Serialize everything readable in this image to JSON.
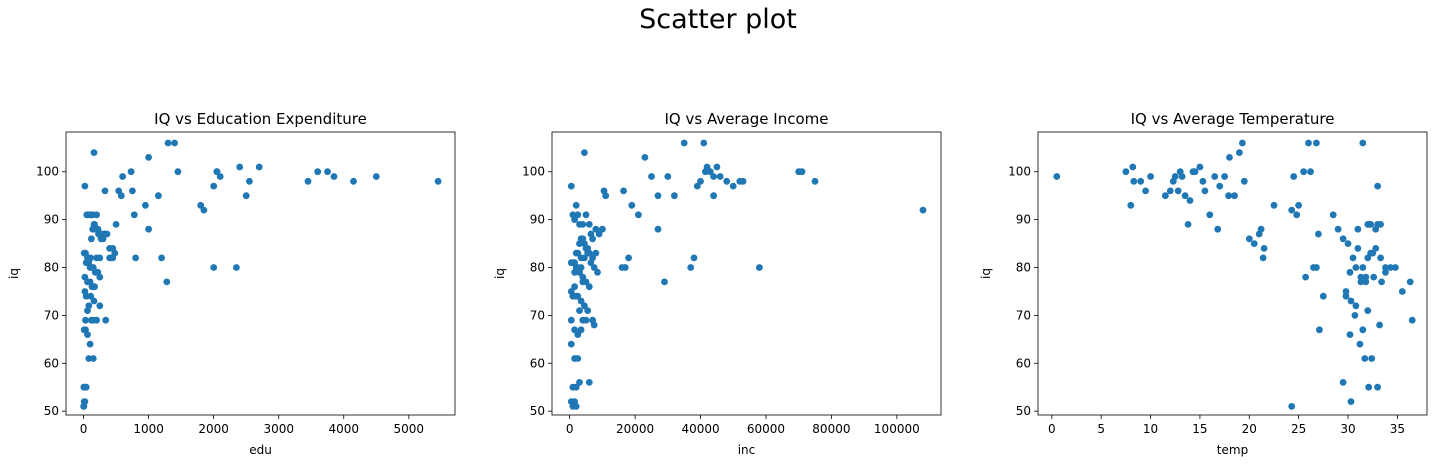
{
  "suptitle": "Scatter plot",
  "colors": {
    "marker": "#1f77b4"
  },
  "chart_data": [
    {
      "type": "scatter",
      "title": "IQ vs Education Expenditure",
      "xlabel": "edu",
      "ylabel": "iq",
      "xlim": [
        -270,
        5710
      ],
      "ylim": [
        49.2,
        108.3
      ],
      "xticks": [
        0,
        1000,
        2000,
        3000,
        4000,
        5000
      ],
      "yticks": [
        50,
        60,
        70,
        80,
        90,
        100
      ],
      "x": [
        1300,
        1400,
        2400,
        2700,
        1000,
        160,
        1450,
        3600,
        3750,
        4500,
        2100,
        3450,
        3850,
        2050,
        4150,
        5450,
        1800,
        330,
        600,
        950,
        540,
        580,
        750,
        1150,
        2000,
        2500,
        2550,
        1850,
        2050,
        730,
        780,
        20,
        50,
        70,
        110,
        140,
        170,
        200,
        220,
        250,
        280,
        320,
        330,
        360,
        400,
        450,
        480,
        500,
        120,
        140,
        160,
        180,
        200,
        230,
        260,
        270,
        300,
        10,
        30,
        60,
        80,
        110,
        200,
        250,
        400,
        420,
        450,
        40,
        80,
        100,
        130,
        150,
        180,
        220,
        250,
        20,
        60,
        100,
        130,
        150,
        170,
        1000,
        1200,
        1280,
        2000,
        2350,
        800,
        20,
        40,
        110,
        160,
        250,
        60,
        80,
        120,
        150,
        200,
        10,
        30,
        60,
        100,
        340,
        5,
        20,
        40,
        80,
        150,
        20,
        0,
        5,
        10,
        30
      ],
      "y": [
        106,
        106,
        101,
        101,
        103,
        104,
        100,
        100,
        100,
        99,
        99,
        98,
        99,
        100,
        98,
        98,
        93,
        96,
        99,
        93,
        96,
        95,
        96,
        95,
        97,
        95,
        98,
        92,
        100,
        100,
        91,
        97,
        91,
        91,
        91,
        91,
        89,
        91,
        88,
        87,
        87,
        87,
        87,
        87,
        84,
        84,
        83,
        89,
        86,
        88,
        89,
        88,
        88,
        87,
        87,
        86,
        86,
        83,
        83,
        82,
        82,
        82,
        82,
        82,
        82,
        82,
        82,
        81,
        81,
        80,
        80,
        80,
        79,
        79,
        78,
        78,
        77,
        77,
        76,
        76,
        76,
        88,
        82,
        77,
        80,
        80,
        82,
        75,
        74,
        74,
        73,
        72,
        71,
        72,
        69,
        69,
        69,
        67,
        67,
        66,
        64,
        69,
        55,
        55,
        55,
        61,
        61,
        52,
        51,
        51,
        52,
        69
      ],
      "marker_color": "#1f77b4"
    },
    {
      "type": "scatter",
      "title": "IQ vs Average Income",
      "xlabel": "inc",
      "ylabel": "iq",
      "xlim": [
        -5400,
        113500
      ],
      "ylim": [
        49.2,
        108.3
      ],
      "xticks": [
        0,
        20000,
        40000,
        60000,
        80000,
        100000
      ],
      "yticks": [
        50,
        60,
        70,
        80,
        90,
        100
      ],
      "x": [
        35000,
        41000,
        4500,
        23000,
        45000,
        71000,
        70000,
        75000,
        53000,
        50000,
        48000,
        41500,
        42000,
        43000,
        44000,
        46000,
        52000,
        30000,
        40000,
        39000,
        19000,
        21000,
        25000,
        27000,
        32000,
        44000,
        108000,
        16500,
        10500,
        11000,
        37000,
        58000,
        500,
        1000,
        1500,
        2000,
        2500,
        3000,
        3500,
        4000,
        5000,
        6000,
        7000,
        8000,
        9000,
        10000,
        1500,
        2500,
        3500,
        4500,
        5500,
        6500,
        8000,
        2000,
        3000,
        4000,
        5000,
        6000,
        7000,
        500,
        1500,
        2500,
        3500,
        4500,
        5500,
        6500,
        7500,
        8500,
        2000,
        3000,
        4000,
        500,
        1500,
        2500,
        3500,
        4500,
        5500,
        18000,
        16000,
        17000,
        27000,
        38000,
        29000,
        1000,
        2000,
        3000,
        4000,
        5000,
        6000,
        7000,
        1000,
        2000,
        3000,
        4000,
        6000,
        500,
        1500,
        2500,
        3500,
        5000,
        7500,
        1000,
        2000,
        3000,
        1500,
        2500,
        1500,
        500,
        1000,
        2000,
        500
      ],
      "y": [
        106,
        106,
        104,
        103,
        101,
        100,
        100,
        98,
        98,
        97,
        98,
        100,
        101,
        100,
        99,
        99,
        98,
        99,
        98,
        97,
        93,
        91,
        99,
        95,
        95,
        95,
        92,
        96,
        96,
        95,
        80,
        80,
        97,
        91,
        90,
        93,
        91,
        89,
        86,
        89,
        91,
        89,
        86,
        88,
        87,
        88,
        81,
        83,
        82,
        85,
        84,
        87,
        83,
        83,
        85,
        86,
        84,
        83,
        82,
        81,
        79,
        80,
        80,
        82,
        83,
        81,
        80,
        79,
        80,
        79,
        77,
        75,
        76,
        74,
        73,
        72,
        71,
        82,
        80,
        80,
        88,
        82,
        77,
        81,
        80,
        79,
        78,
        77,
        76,
        69,
        74,
        74,
        71,
        69,
        56,
        69,
        67,
        66,
        67,
        69,
        68,
        55,
        55,
        56,
        61,
        61,
        52,
        64,
        51,
        51,
        52
      ],
      "marker_color": "#1f77b4"
    },
    {
      "type": "scatter",
      "title": "IQ vs Average Temperature",
      "xlabel": "temp",
      "ylabel": "iq",
      "xlim": [
        -1.4,
        38.0
      ],
      "ylim": [
        49.2,
        108.3
      ],
      "xticks": [
        0,
        5,
        10,
        15,
        20,
        25,
        30,
        35
      ],
      "yticks": [
        50,
        60,
        70,
        80,
        90,
        100
      ],
      "x": [
        0.5,
        8.2,
        7.5,
        9.0,
        10.0,
        8.0,
        12.5,
        13.0,
        14.5,
        15.0,
        16.5,
        17.5,
        15.5,
        14.0,
        11.5,
        12.0,
        12.8,
        13.5,
        13.8,
        16.0,
        17.0,
        18.0,
        19.0,
        19.3,
        19.5,
        20.0,
        18.5,
        17.9,
        16.8,
        15.3,
        14.3,
        13.2,
        12.3,
        9.5,
        8.3,
        21.0,
        21.5,
        22.5,
        21.2,
        21.4,
        20.5,
        24.5,
        25.0,
        25.5,
        26.0,
        26.5,
        27.0,
        24.3,
        24.8,
        25.7,
        26.8,
        27.5,
        27.1,
        28.5,
        29.0,
        29.5,
        30.0,
        30.5,
        31.0,
        31.5,
        32.0,
        32.5,
        33.0,
        30.2,
        30.8,
        31.3,
        31.8,
        32.3,
        32.8,
        33.3,
        33.8,
        34.3,
        34.8,
        35.5,
        36.5,
        36.3,
        31.5,
        32.2,
        33.0,
        29.8,
        30.3,
        30.8,
        31.3,
        31.8,
        32.3,
        32.8,
        33.3,
        33.8,
        29.5,
        30.3,
        31.2,
        32.1,
        33.0,
        24.3,
        29.8,
        32.0,
        30.2,
        31.5,
        32.4,
        30.7,
        31.7,
        32.6,
        33.4,
        31.0,
        32.0,
        33.2,
        26.2,
        26.8
      ],
      "y": [
        99,
        101,
        100,
        98,
        99,
        93,
        99,
        100,
        100,
        101,
        99,
        99,
        96,
        94,
        95,
        96,
        96,
        95,
        89,
        91,
        97,
        103,
        104,
        106,
        98,
        86,
        95,
        95,
        88,
        98,
        100,
        99,
        98,
        96,
        98,
        87,
        84,
        93,
        88,
        82,
        85,
        99,
        93,
        100,
        106,
        80,
        87,
        92,
        91,
        78,
        80,
        74,
        67,
        91,
        88,
        86,
        85,
        82,
        84,
        80,
        82,
        83,
        89,
        79,
        80,
        78,
        77,
        83,
        84,
        82,
        79,
        80,
        80,
        75,
        69,
        77,
        106,
        89,
        97,
        74,
        73,
        72,
        77,
        78,
        89,
        88,
        89,
        80,
        56,
        52,
        64,
        55,
        55,
        51,
        75,
        71,
        66,
        67,
        61,
        70,
        61,
        78,
        77,
        88,
        89,
        68,
        100,
        106
      ],
      "marker_color": "#1f77b4"
    }
  ]
}
